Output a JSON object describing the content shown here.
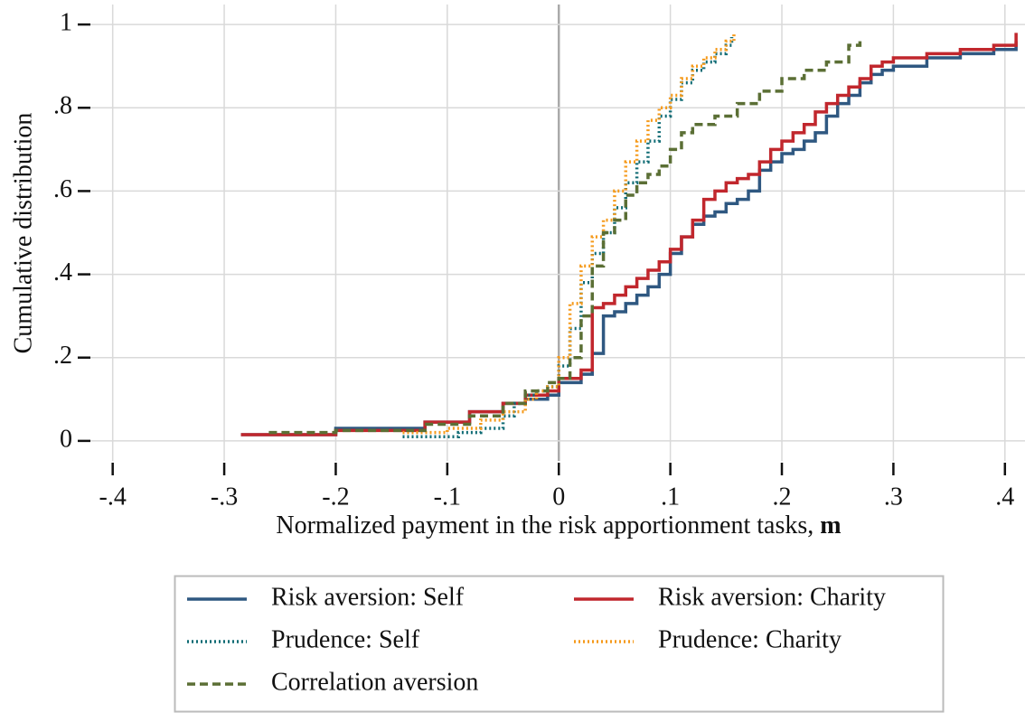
{
  "chart_data": {
    "type": "step",
    "xlabel": "Normalized payment in the risk apportionment tasks,",
    "xlabel_symbol": "m",
    "ylabel": "Cumulative distribution",
    "xlim": [
      -0.42,
      0.418
    ],
    "ylim": [
      -0.048,
      1.048
    ],
    "xticks": [
      {
        "value": -0.4,
        "label": "-.4"
      },
      {
        "value": -0.3,
        "label": "-.3"
      },
      {
        "value": -0.2,
        "label": "-.2"
      },
      {
        "value": -0.1,
        "label": "-.1"
      },
      0,
      {
        "value": 0.1,
        "label": ".1"
      },
      {
        "value": 0.2,
        "label": ".2"
      },
      {
        "value": 0.3,
        "label": ".3"
      },
      {
        "value": 0.4,
        "label": ".4"
      }
    ],
    "yticks": [
      0,
      {
        "value": 0.2,
        "label": ".2"
      },
      {
        "value": 0.4,
        "label": ".4"
      },
      {
        "value": 0.6,
        "label": ".6"
      },
      {
        "value": 0.8,
        "label": ".8"
      },
      1
    ],
    "grid": true,
    "legend": "bottom",
    "series": [
      {
        "name": "Risk aversion: Self",
        "color": "#2f5881",
        "dash": "solid",
        "x": [
          -0.285,
          -0.2,
          -0.12,
          -0.08,
          -0.05,
          -0.03,
          -0.01,
          0.0,
          0.02,
          0.03,
          0.04,
          0.05,
          0.06,
          0.07,
          0.08,
          0.09,
          0.1,
          0.11,
          0.12,
          0.13,
          0.14,
          0.15,
          0.16,
          0.17,
          0.18,
          0.19,
          0.2,
          0.21,
          0.22,
          0.23,
          0.24,
          0.25,
          0.26,
          0.27,
          0.28,
          0.29,
          0.3,
          0.33,
          0.36,
          0.39,
          0.41
        ],
        "values": [
          0.015,
          0.03,
          0.045,
          0.07,
          0.09,
          0.1,
          0.11,
          0.14,
          0.16,
          0.21,
          0.3,
          0.31,
          0.33,
          0.35,
          0.37,
          0.4,
          0.45,
          0.49,
          0.52,
          0.54,
          0.55,
          0.57,
          0.58,
          0.6,
          0.65,
          0.67,
          0.69,
          0.7,
          0.72,
          0.74,
          0.78,
          0.81,
          0.83,
          0.86,
          0.88,
          0.89,
          0.9,
          0.92,
          0.93,
          0.94,
          0.96
        ]
      },
      {
        "name": "Risk aversion: Charity",
        "color": "#c1272d",
        "dash": "solid",
        "x": [
          -0.285,
          -0.2,
          -0.12,
          -0.08,
          -0.05,
          -0.03,
          -0.01,
          0.0,
          0.02,
          0.03,
          0.04,
          0.05,
          0.06,
          0.07,
          0.08,
          0.09,
          0.1,
          0.11,
          0.12,
          0.13,
          0.14,
          0.15,
          0.16,
          0.17,
          0.18,
          0.19,
          0.2,
          0.21,
          0.22,
          0.23,
          0.24,
          0.25,
          0.26,
          0.27,
          0.28,
          0.29,
          0.3,
          0.33,
          0.36,
          0.39,
          0.41
        ],
        "values": [
          0.015,
          0.025,
          0.045,
          0.07,
          0.09,
          0.11,
          0.12,
          0.15,
          0.17,
          0.32,
          0.33,
          0.35,
          0.37,
          0.39,
          0.41,
          0.43,
          0.46,
          0.49,
          0.53,
          0.58,
          0.6,
          0.62,
          0.63,
          0.64,
          0.67,
          0.7,
          0.72,
          0.74,
          0.76,
          0.79,
          0.81,
          0.83,
          0.85,
          0.87,
          0.9,
          0.91,
          0.92,
          0.93,
          0.94,
          0.95,
          0.98
        ]
      },
      {
        "name": "Prudence: Self",
        "color": "#0f6b74",
        "dash": "dotted",
        "x": [
          -0.14,
          -0.09,
          -0.07,
          -0.05,
          -0.04,
          -0.03,
          -0.02,
          -0.01,
          0,
          0.01,
          0.02,
          0.03,
          0.04,
          0.05,
          0.06,
          0.07,
          0.08,
          0.09,
          0.1,
          0.11,
          0.12,
          0.13,
          0.14,
          0.15,
          0.155
        ],
        "values": [
          0.01,
          0.02,
          0.03,
          0.06,
          0.09,
          0.11,
          0.12,
          0.13,
          0.18,
          0.27,
          0.38,
          0.45,
          0.5,
          0.56,
          0.62,
          0.67,
          0.72,
          0.78,
          0.82,
          0.86,
          0.89,
          0.91,
          0.93,
          0.95,
          0.97
        ]
      },
      {
        "name": "Prudence: Charity",
        "color": "#f59a1b",
        "dash": "dotted",
        "x": [
          -0.14,
          -0.1,
          -0.07,
          -0.05,
          -0.03,
          -0.02,
          -0.01,
          0,
          0.01,
          0.02,
          0.03,
          0.04,
          0.05,
          0.06,
          0.07,
          0.08,
          0.09,
          0.1,
          0.11,
          0.12,
          0.13,
          0.14,
          0.15,
          0.157
        ],
        "values": [
          0.02,
          0.03,
          0.05,
          0.07,
          0.1,
          0.12,
          0.13,
          0.2,
          0.33,
          0.42,
          0.49,
          0.53,
          0.6,
          0.67,
          0.72,
          0.77,
          0.8,
          0.83,
          0.87,
          0.9,
          0.92,
          0.94,
          0.96,
          0.98
        ]
      },
      {
        "name": "Correlation aversion",
        "color": "#5b6f35",
        "dash": "dashed",
        "x": [
          -0.26,
          -0.2,
          -0.12,
          -0.08,
          -0.05,
          -0.03,
          -0.01,
          0,
          0.01,
          0.02,
          0.03,
          0.04,
          0.05,
          0.06,
          0.07,
          0.08,
          0.09,
          0.1,
          0.11,
          0.12,
          0.14,
          0.16,
          0.18,
          0.2,
          0.22,
          0.24,
          0.26,
          0.27
        ],
        "values": [
          0.02,
          0.025,
          0.04,
          0.06,
          0.09,
          0.12,
          0.14,
          0.15,
          0.2,
          0.3,
          0.42,
          0.5,
          0.53,
          0.59,
          0.62,
          0.64,
          0.66,
          0.7,
          0.74,
          0.76,
          0.78,
          0.81,
          0.84,
          0.87,
          0.89,
          0.91,
          0.95,
          0.97
        ]
      }
    ]
  }
}
